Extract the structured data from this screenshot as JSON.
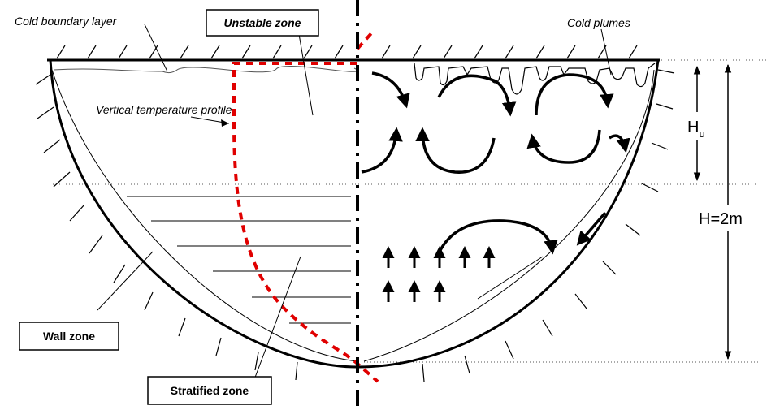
{
  "labels": {
    "cold_boundary_layer": "Cold boundary layer",
    "unstable_zone": "Unstable zone",
    "cold_plumes": "Cold plumes",
    "vertical_temperature_profile": "Vertical temperature profile",
    "wall_zone": "Wall zone",
    "stratified_zone": "Stratified zone",
    "hu_main": "H",
    "hu_sub": "u",
    "h_total": "H=2m"
  },
  "colors": {
    "outline": "#000000",
    "temperature_profile": "#e00000",
    "thin_guides": "#555555",
    "background": "#ffffff"
  }
}
